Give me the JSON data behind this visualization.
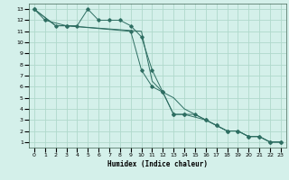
{
  "xlabel": "Humidex (Indice chaleur)",
  "bg_color": "#d4f0ea",
  "grid_color": "#b0d9cc",
  "line_color": "#2e6e62",
  "xlim": [
    -0.5,
    23.5
  ],
  "ylim": [
    0.5,
    13.5
  ],
  "xticks": [
    0,
    1,
    2,
    3,
    4,
    5,
    6,
    7,
    8,
    9,
    10,
    11,
    12,
    13,
    14,
    15,
    16,
    17,
    18,
    19,
    20,
    21,
    22,
    23
  ],
  "yticks": [
    1,
    2,
    3,
    4,
    5,
    6,
    7,
    8,
    9,
    10,
    11,
    12,
    13
  ],
  "series": [
    {
      "x": [
        0,
        1,
        3,
        4,
        5,
        6,
        7,
        8,
        9,
        10,
        11,
        12,
        13,
        14,
        16,
        17,
        18,
        19,
        20,
        21,
        22,
        23
      ],
      "y": [
        13,
        12,
        11.5,
        11.5,
        13,
        12,
        12,
        12,
        11.5,
        10.5,
        7.5,
        5.5,
        3.5,
        3.5,
        3.0,
        2.5,
        2.0,
        2.0,
        1.5,
        1.5,
        1.0,
        1.0
      ],
      "marker": true
    },
    {
      "x": [
        0,
        2,
        3,
        10,
        11,
        12,
        13,
        14,
        15,
        16,
        17,
        18,
        19,
        20,
        21,
        22,
        23
      ],
      "y": [
        13,
        11.5,
        11.5,
        11.0,
        6.5,
        5.5,
        5.0,
        4.0,
        3.5,
        3.0,
        2.5,
        2.0,
        2.0,
        1.5,
        1.5,
        1.0,
        1.0
      ],
      "marker": false
    },
    {
      "x": [
        0,
        2,
        3,
        9,
        10,
        11,
        12,
        13,
        14,
        15,
        16,
        17,
        18,
        19,
        20,
        21,
        22,
        23
      ],
      "y": [
        13,
        11.5,
        11.5,
        11.0,
        7.5,
        6.0,
        5.5,
        3.5,
        3.5,
        3.5,
        3.0,
        2.5,
        2.0,
        2.0,
        1.5,
        1.5,
        1.0,
        1.0
      ],
      "marker": true
    }
  ]
}
